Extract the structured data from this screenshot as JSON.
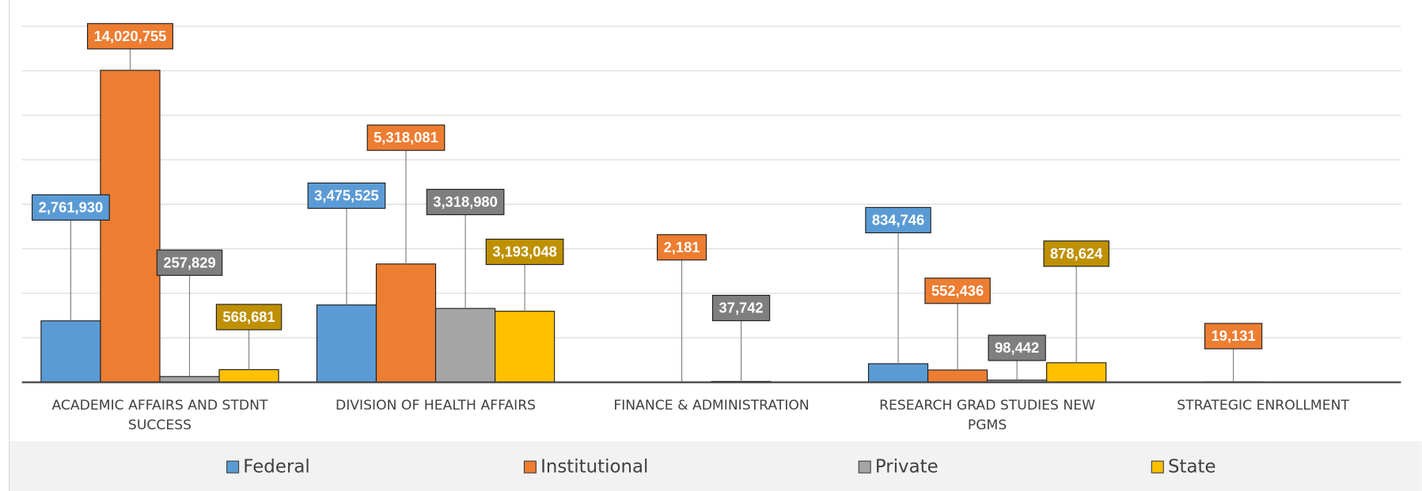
{
  "chart_data": {
    "type": "bar",
    "categories": [
      "ACADEMIC AFFAIRS AND STDNT SUCCESS",
      "DIVISION OF HEALTH AFFAIRS",
      "FINANCE & ADMINISTRATION",
      "RESEARCH GRAD STUDIES NEW PGMS",
      "STRATEGIC ENROLLMENT"
    ],
    "series": [
      {
        "name": "Federal",
        "color": "#5b9bd5",
        "label_color": "#5b9bd5",
        "values": [
          2761930,
          3475525,
          null,
          834746,
          null
        ],
        "value_labels": [
          "2,761,930",
          "3,475,525",
          null,
          "834,746",
          null
        ]
      },
      {
        "name": "Institutional",
        "color": "#ed7d31",
        "label_color": "#ed7d31",
        "values": [
          14020755,
          5318081,
          2181,
          552436,
          19131
        ],
        "value_labels": [
          "14,020,755",
          "5,318,081",
          "2,181",
          "552,436",
          "19,131"
        ]
      },
      {
        "name": "Private",
        "color": "#a5a5a5",
        "label_color": "#7f7f7f",
        "values": [
          257829,
          3318980,
          37742,
          98442,
          null
        ],
        "value_labels": [
          "257,829",
          "3,318,980",
          "37,742",
          "98,442",
          null
        ]
      },
      {
        "name": "State",
        "color": "#ffc000",
        "label_color": "#bf9000",
        "values": [
          568681,
          3193048,
          null,
          878624,
          null
        ],
        "value_labels": [
          "568,681",
          "3,193,048",
          null,
          "878,624",
          null
        ]
      }
    ],
    "ylim": [
      0,
      16000000
    ],
    "yticks": [
      0,
      2000000,
      4000000,
      6000000,
      8000000,
      10000000,
      12000000,
      14000000,
      16000000
    ],
    "grid": true,
    "legend": "bottom"
  }
}
